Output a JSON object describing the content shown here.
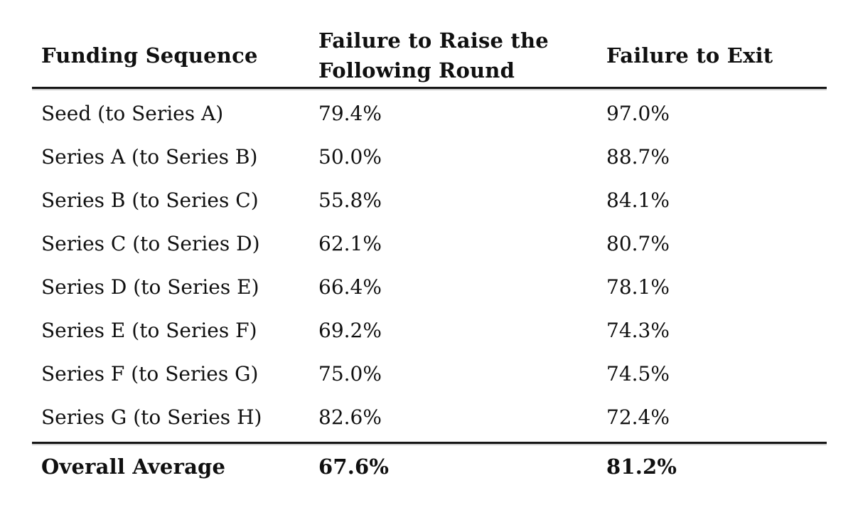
{
  "table": {
    "columns": [
      {
        "label": "Funding Sequence"
      },
      {
        "label_line1": "Failure to Raise the",
        "label_line2": "Following Round"
      },
      {
        "label": "Failure to Exit"
      }
    ],
    "rows": [
      {
        "sequence": "Seed (to Series A)",
        "failure_to_raise": "79.4%",
        "failure_to_exit": "97.0%"
      },
      {
        "sequence": "Series A (to Series B)",
        "failure_to_raise": "50.0%",
        "failure_to_exit": "88.7%"
      },
      {
        "sequence": "Series B (to Series C)",
        "failure_to_raise": "55.8%",
        "failure_to_exit": "84.1%"
      },
      {
        "sequence": "Series C (to Series D)",
        "failure_to_raise": "62.1%",
        "failure_to_exit": "80.7%"
      },
      {
        "sequence": "Series D (to Series E)",
        "failure_to_raise": "66.4%",
        "failure_to_exit": "78.1%"
      },
      {
        "sequence": "Series E (to Series F)",
        "failure_to_raise": "69.2%",
        "failure_to_exit": "74.3%"
      },
      {
        "sequence": "Series F (to Series G)",
        "failure_to_raise": "75.0%",
        "failure_to_exit": "74.5%"
      },
      {
        "sequence": "Series G (to Series H)",
        "failure_to_raise": "82.6%",
        "failure_to_exit": "72.4%"
      }
    ],
    "footer": {
      "label": "Overall Average",
      "failure_to_raise": "67.6%",
      "failure_to_exit": "81.2%"
    }
  },
  "colors": {
    "background": "#ffffff",
    "text": "#101010",
    "rule": "#161616"
  }
}
